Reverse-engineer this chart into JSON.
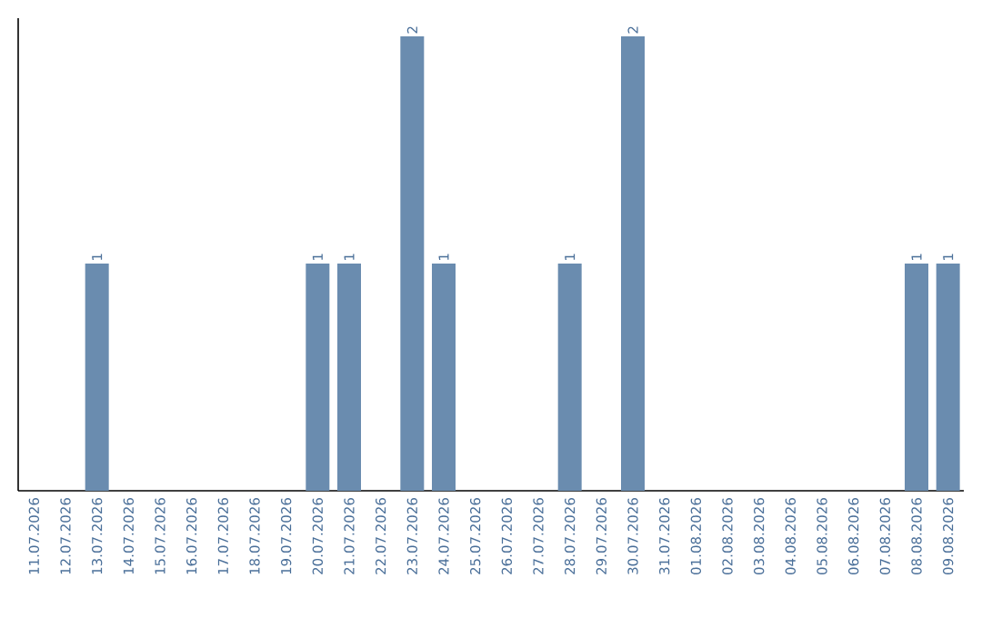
{
  "chart_data": {
    "type": "bar",
    "categories": [
      "11.07.2026",
      "12.07.2026",
      "13.07.2026",
      "14.07.2026",
      "15.07.2026",
      "16.07.2026",
      "17.07.2026",
      "18.07.2026",
      "19.07.2026",
      "20.07.2026",
      "21.07.2026",
      "22.07.2026",
      "23.07.2026",
      "24.07.2026",
      "25.07.2026",
      "26.07.2026",
      "27.07.2026",
      "28.07.2026",
      "29.07.2026",
      "30.07.2026",
      "31.07.2026",
      "01.08.2026",
      "02.08.2026",
      "03.08.2026",
      "04.08.2026",
      "05.08.2026",
      "06.08.2026",
      "07.08.2026",
      "08.08.2026",
      "09.08.2026"
    ],
    "values": [
      0,
      0,
      1,
      0,
      0,
      0,
      0,
      0,
      0,
      1,
      1,
      0,
      2,
      1,
      0,
      0,
      0,
      1,
      0,
      2,
      0,
      0,
      0,
      0,
      0,
      0,
      0,
      0,
      1,
      1
    ],
    "value_labels": [
      null,
      null,
      "1",
      null,
      null,
      null,
      null,
      null,
      null,
      "1",
      "1",
      null,
      "2",
      "1",
      null,
      null,
      null,
      "1",
      null,
      "2",
      null,
      null,
      null,
      null,
      null,
      null,
      null,
      null,
      "1",
      "1"
    ],
    "color": "#6a8caf",
    "ylim": [
      0,
      2.08
    ],
    "tick_labels": "x"
  }
}
